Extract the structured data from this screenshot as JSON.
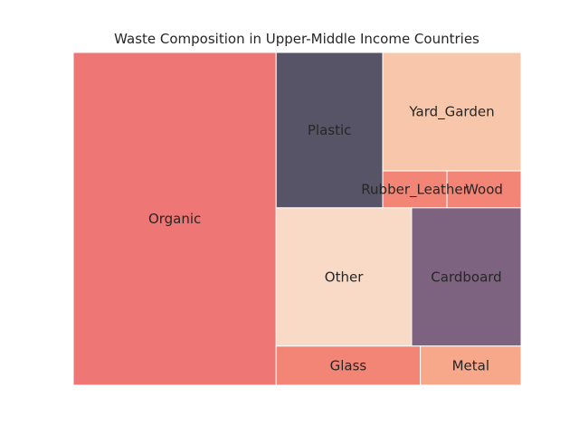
{
  "chart_data": {
    "type": "treemap",
    "title": "Waste Composition in Upper-Middle Income Countries",
    "xlim": [
      0,
      100
    ],
    "ylim": [
      0,
      100
    ],
    "cells": [
      {
        "label": "Organic",
        "x": 0,
        "y": 0,
        "w": 45.3,
        "h": 100,
        "color": "#ee7674"
      },
      {
        "label": "Plastic",
        "x": 45.3,
        "y": 53.3,
        "w": 23.8,
        "h": 46.7,
        "color": "#585467"
      },
      {
        "label": "Yard_Garden",
        "x": 69.1,
        "y": 64.4,
        "w": 30.9,
        "h": 35.6,
        "color": "#f8c7ab"
      },
      {
        "label": "Rubber_Leather",
        "x": 69.1,
        "y": 53.3,
        "w": 14.35,
        "h": 11.1,
        "color": "#f28575"
      },
      {
        "label": "Wood",
        "x": 83.45,
        "y": 53.3,
        "w": 16.55,
        "h": 11.1,
        "color": "#f28575"
      },
      {
        "label": "Other",
        "x": 45.3,
        "y": 11.75,
        "w": 30.25,
        "h": 41.55,
        "color": "#f9dac6"
      },
      {
        "label": "Cardboard",
        "x": 75.55,
        "y": 11.75,
        "w": 24.45,
        "h": 41.55,
        "color": "#7d637f"
      },
      {
        "label": "Glass",
        "x": 45.3,
        "y": 0,
        "w": 32.2,
        "h": 11.75,
        "color": "#f28575"
      },
      {
        "label": "Metal",
        "x": 77.5,
        "y": 0,
        "w": 22.5,
        "h": 11.75,
        "color": "#f8a88a"
      }
    ]
  }
}
